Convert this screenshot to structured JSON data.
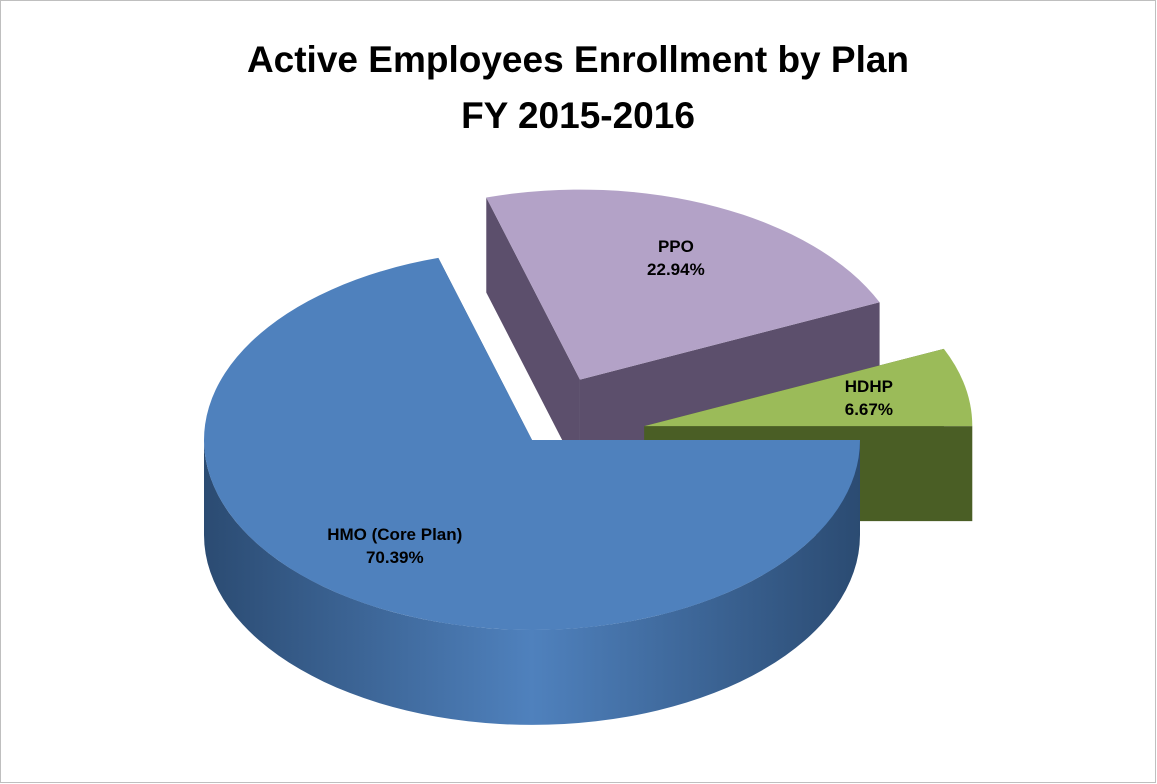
{
  "chart_data": {
    "type": "pie",
    "title": "Active Employees Enrollment by Plan",
    "subtitle": "FY 2015-2016",
    "categories": [
      "HMO (Core Plan)",
      "PPO",
      "HDHP"
    ],
    "values": [
      70.39,
      22.94,
      6.67
    ],
    "value_labels": [
      "70.39%",
      "22.94%",
      "6.67%"
    ],
    "colors": [
      "#4f81bd",
      "#b3a2c7",
      "#9bbb59"
    ],
    "side_colors": [
      "#2b4b72",
      "#5c4f6c",
      "#4a5e25"
    ]
  }
}
